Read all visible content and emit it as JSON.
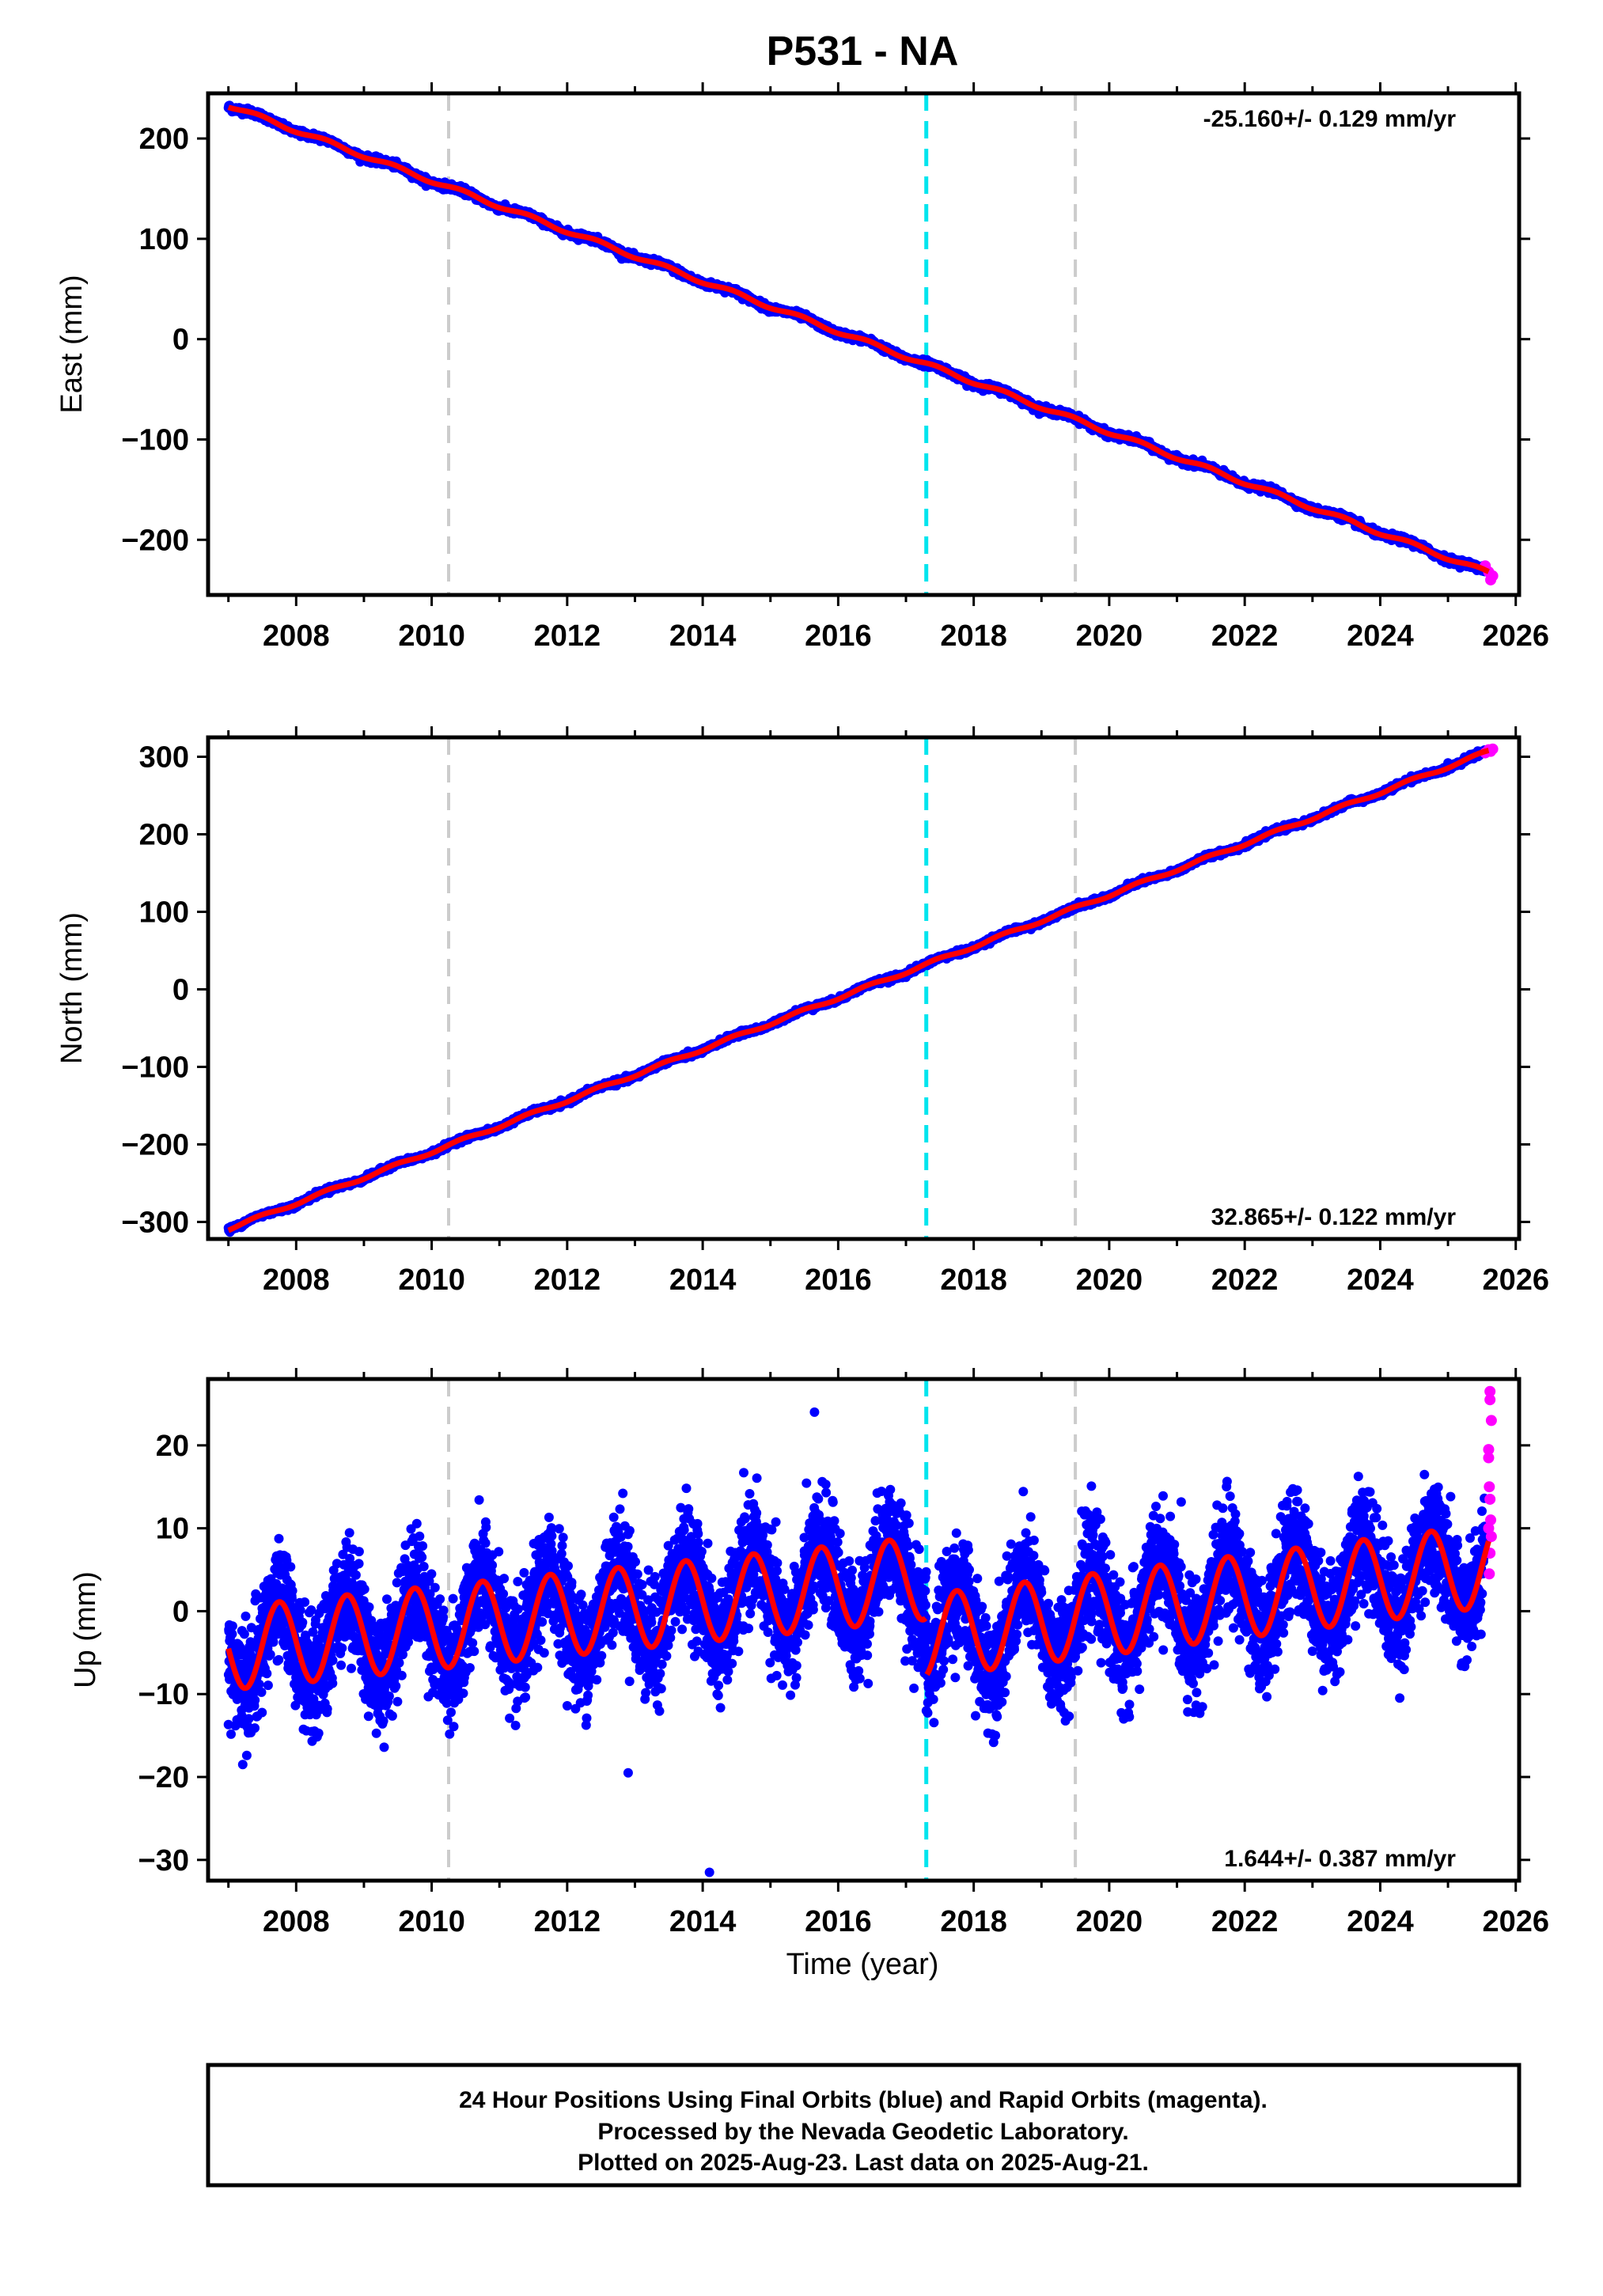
{
  "title": "P531 - NA",
  "xlabel": "Time (year)",
  "xticks": [
    2008,
    2010,
    2012,
    2014,
    2016,
    2018,
    2020,
    2022,
    2024,
    2026
  ],
  "xlim": [
    2006.7,
    2026.05
  ],
  "caption": {
    "line1": "24 Hour Positions Using Final Orbits (blue) and Rapid Orbits (magenta).",
    "line2": "Processed by the Nevada Geodetic Laboratory.",
    "line3": "Plotted on 2025-Aug-23. Last data on 2025-Aug-21."
  },
  "colors": {
    "final_orbits": "#0000ff",
    "rapid_orbits": "#ff00ff",
    "model_fit": "#ff0000",
    "equipment_change": "#cccccc",
    "earthquake_event": "#00e5ee"
  },
  "chart_data": [
    {
      "type": "scatter",
      "name": "east",
      "ylabel": "East (mm)",
      "ylim": [
        -255,
        245
      ],
      "yticks": [
        200,
        100,
        0,
        -100,
        -200
      ],
      "rate_label": "-25.160+/- 0.129 mm/yr",
      "rate_position": "top-right",
      "start": [
        2007.0,
        233
      ],
      "end": [
        2025.6,
        -233
      ],
      "rapid_orbits": [
        [
          2025.55,
          -226
        ],
        [
          2025.6,
          -232
        ],
        [
          2025.63,
          -240
        ],
        [
          2025.66,
          -236
        ]
      ],
      "gray_lines": [
        2010.25,
        2019.5
      ],
      "cyan_lines": [
        2017.3
      ],
      "seasonal_amplitude_mm": 2
    },
    {
      "type": "scatter",
      "name": "north",
      "ylabel": "North (mm)",
      "ylim": [
        -322,
        325
      ],
      "yticks": [
        300,
        200,
        100,
        0,
        -100,
        -200,
        -300
      ],
      "rate_label": "32.865+/- 0.122 mm/yr",
      "rate_position": "bottom-right",
      "start": [
        2007.0,
        -309
      ],
      "end": [
        2025.6,
        307
      ],
      "rapid_orbits": [
        [
          2025.55,
          305
        ],
        [
          2025.6,
          309
        ],
        [
          2025.63,
          307
        ],
        [
          2025.66,
          310
        ]
      ],
      "gray_lines": [
        2010.25,
        2019.5
      ],
      "cyan_lines": [
        2017.3
      ],
      "seasonal_amplitude_mm": 2
    },
    {
      "type": "scatter",
      "name": "up",
      "ylabel": "Up (mm)",
      "ylim": [
        -32.5,
        28
      ],
      "yticks": [
        20,
        10,
        0,
        -10,
        -20,
        -30
      ],
      "rate_label": "1.644+/- 0.387 mm/yr",
      "rate_position": "bottom-right",
      "seasonal_amplitude_mm": 5,
      "seasonal_peaks": [
        2007.75,
        2008.75,
        2009.75,
        2010.75,
        2011.75,
        2012.75,
        2013.75,
        2014.75,
        2015.75,
        2016.75,
        2017.75,
        2018.75,
        2019.75,
        2020.75,
        2021.75,
        2022.75,
        2023.75,
        2024.75
      ],
      "model_offset_before_2017_3": {
        "start": [
          2007.0,
          -4.5
        ],
        "end": [
          2017.3,
          4.0
        ]
      },
      "model_offset_after_2017_3": {
        "start": [
          2017.3,
          -3.0
        ],
        "end": [
          2025.6,
          5.5
        ]
      },
      "noise_sd_mm": 3.5,
      "outliers": [
        [
          2014.1,
          -31.5
        ],
        [
          2012.9,
          -19.5
        ],
        [
          2015.65,
          24
        ]
      ],
      "rapid_orbits": [
        [
          2025.62,
          26.5
        ],
        [
          2025.62,
          25.5
        ],
        [
          2025.64,
          23
        ],
        [
          2025.6,
          19.5
        ],
        [
          2025.6,
          18.5
        ],
        [
          2025.61,
          15
        ],
        [
          2025.62,
          13.5
        ],
        [
          2025.63,
          11
        ],
        [
          2025.6,
          10
        ],
        [
          2025.64,
          9
        ],
        [
          2025.62,
          7
        ],
        [
          2025.61,
          4.5
        ]
      ],
      "gray_lines": [
        2010.25,
        2019.5
      ],
      "cyan_lines": [
        2017.3
      ]
    }
  ]
}
